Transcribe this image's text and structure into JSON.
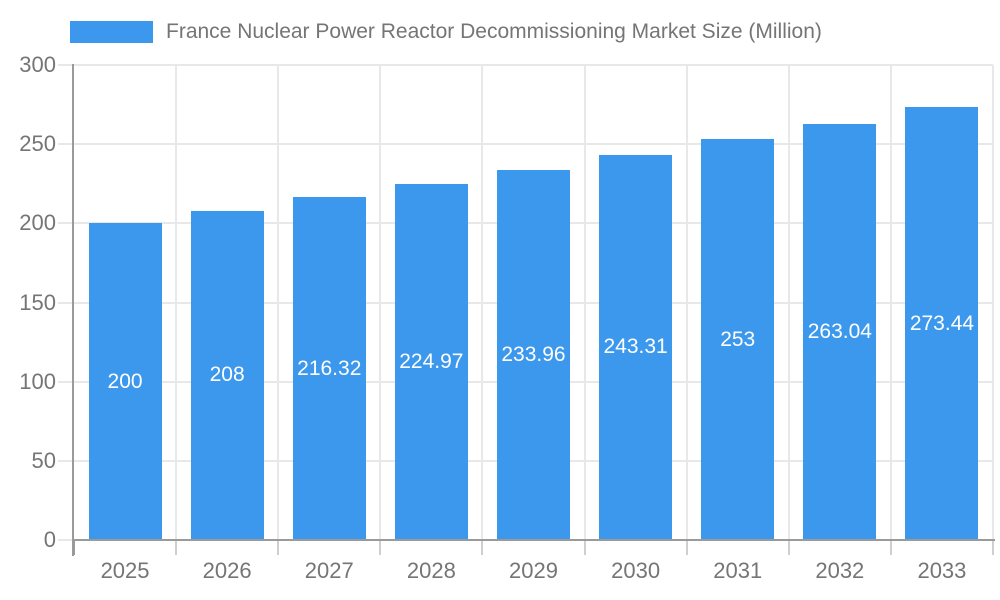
{
  "legend": {
    "label": "France Nuclear Power Reactor Decommissioning Market Size (Million)"
  },
  "colors": {
    "bar": "#3B98EC",
    "gridline": "#e8e8e8",
    "axis_line": "#9a9a9a",
    "bottom_tick": "#cfcfcf",
    "axis_text": "#757575",
    "value_text": "#ffffff"
  },
  "chart_data": {
    "type": "bar",
    "title": "France Nuclear Power Reactor Decommissioning Market Size (Million)",
    "categories": [
      "2025",
      "2026",
      "2027",
      "2028",
      "2029",
      "2030",
      "2031",
      "2032",
      "2033"
    ],
    "values": [
      200,
      208,
      216.32,
      224.97,
      233.96,
      243.31,
      253,
      263.04,
      273.44
    ],
    "value_labels": [
      "200",
      "208",
      "216.32",
      "224.97",
      "233.96",
      "243.31",
      "253",
      "263.04",
      "273.44"
    ],
    "xlabel": "",
    "ylabel": "",
    "ylim": [
      0,
      300
    ],
    "yticks": [
      0,
      50,
      100,
      150,
      200,
      250,
      300
    ],
    "ytick_labels": [
      "0",
      "50",
      "100",
      "150",
      "200",
      "250",
      "300"
    ],
    "grid": true,
    "legend_position": "top",
    "series_name": "France Nuclear Power Reactor Decommissioning Market Size (Million)"
  }
}
